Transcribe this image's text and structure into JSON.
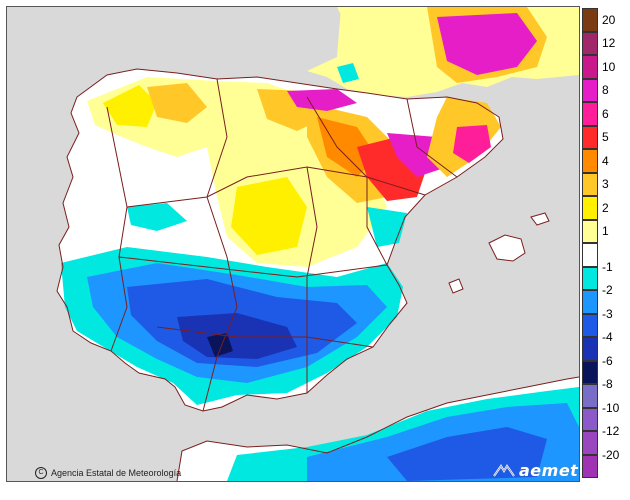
{
  "credit": {
    "text": "Agencia Estatal de Meteorología"
  },
  "logo": {
    "text": "aemet",
    "icon": "aemet-logo-icon"
  },
  "legend": {
    "positive": [
      {
        "label": "20",
        "color": "#7a3a12"
      },
      {
        "label": "12",
        "color": "#a0286a"
      },
      {
        "label": "10",
        "color": "#c8188c"
      },
      {
        "label": "8",
        "color": "#e61ec8"
      },
      {
        "label": "6",
        "color": "#ff1e9a"
      },
      {
        "label": "5",
        "color": "#ff2a2a"
      },
      {
        "label": "4",
        "color": "#ff8a00"
      },
      {
        "label": "3",
        "color": "#ffc828"
      },
      {
        "label": "2",
        "color": "#fff000"
      },
      {
        "label": "1",
        "color": "#ffff96"
      }
    ],
    "neutral": {
      "color": "#ffffff"
    },
    "negative": [
      {
        "label": "-1",
        "color": "#00e8e0"
      },
      {
        "label": "-2",
        "color": "#1e96ff"
      },
      {
        "label": "-3",
        "color": "#1e5ae6"
      },
      {
        "label": "-4",
        "color": "#1a32b4"
      },
      {
        "label": "-6",
        "color": "#0a145a"
      },
      {
        "label": "-8",
        "color": "#786ec8"
      },
      {
        "label": "-10",
        "color": "#8c5ac8"
      },
      {
        "label": "-12",
        "color": "#9a46be"
      },
      {
        "label": "-20",
        "color": "#a032b4"
      }
    ]
  },
  "colors": {
    "sea": "#d9d9d9",
    "border": "#7a1e1e"
  }
}
